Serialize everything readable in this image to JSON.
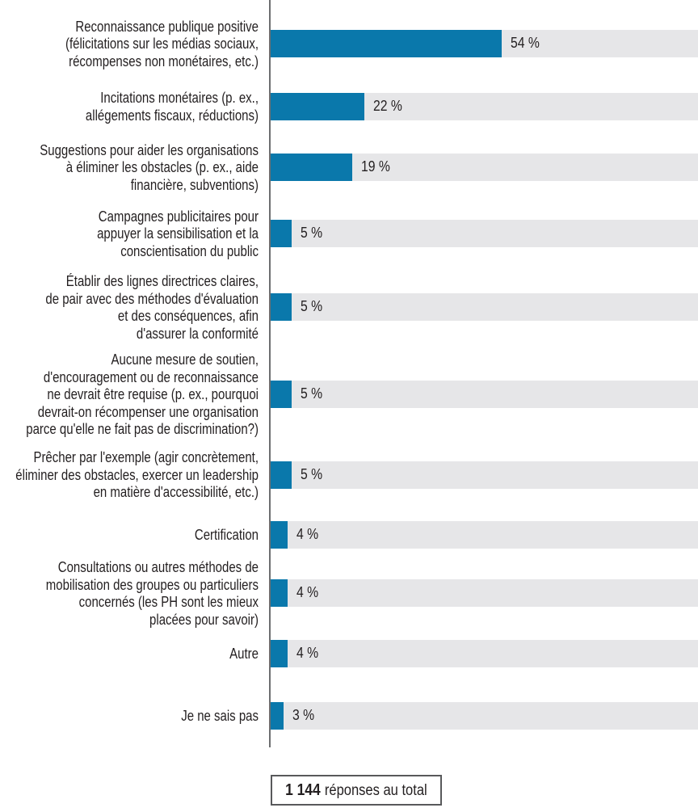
{
  "chart_data": {
    "type": "bar",
    "orientation": "horizontal",
    "title": "",
    "xlabel": "",
    "ylabel": "",
    "xlim": [
      0,
      100
    ],
    "grid": false,
    "legend": false,
    "unit": "%",
    "categories": [
      "Reconnaissance publique positive (félicitations sur les médias sociaux, récompenses non monétaires, etc.)",
      "Incitations monétaires (p. ex., allégements fiscaux, réductions)",
      "Suggestions pour aider les organisations à éliminer les obstacles (p. ex., aide financière, subventions)",
      "Campagnes publicitaires pour appuyer la sensibilisation et la conscientisation du public",
      "Établir des lignes directrices claires, de pair avec des méthodes d'évaluation et des conséquences, afin d'assurer la conformité",
      "Aucune mesure de soutien, d'encouragement ou de reconnaissance ne devrait être requise (p. ex., pourquoi devrait-on récompenser une organisation parce qu'elle ne fait pas de discrimination?)",
      "Prêcher par l'exemple (agir concrètement, éliminer des obstacles, exercer un leadership en matière d'accessibilité, etc.)",
      "Certification",
      "Consultations ou autres méthodes de mobilisation des groupes ou particuliers concernés (les PH sont les mieux placées pour savoir)",
      "Autre",
      "Je ne sais pas"
    ],
    "category_display_lines": [
      [
        "Reconnaissance publique positive",
        "(félicitations sur les médias sociaux,",
        "récompenses non monétaires, etc.)"
      ],
      [
        "Incitations monétaires (p. ex.,",
        "allégements fiscaux, réductions)"
      ],
      [
        "Suggestions pour aider les organisations",
        "à éliminer les obstacles (p. ex., aide",
        "financière, subventions)"
      ],
      [
        "Campagnes publicitaires pour",
        "appuyer la sensibilisation et la",
        "conscientisation du public"
      ],
      [
        "Établir des lignes directrices claires,",
        "de pair avec des méthodes d'évaluation",
        "et des conséquences, afin",
        "d'assurer la conformité"
      ],
      [
        "Aucune mesure de soutien,",
        "d'encouragement ou de reconnaissance",
        "ne devrait être requise (p. ex., pourquoi",
        "devrait-on récompenser une organisation",
        "parce qu'elle ne fait pas de discrimination?)"
      ],
      [
        "Prêcher par l'exemple (agir concrètement,",
        "éliminer des obstacles, exercer un leadership",
        "en matière d'accessibilité, etc.)"
      ],
      [
        "Certification"
      ],
      [
        "Consultations ou autres méthodes de",
        "mobilisation des groupes ou particuliers",
        "concernés (les PH sont les mieux",
        "placées pour savoir)"
      ],
      [
        "Autre"
      ],
      [
        "Je ne sais pas"
      ]
    ],
    "values": [
      54,
      22,
      19,
      5,
      5,
      5,
      5,
      4,
      4,
      4,
      3
    ],
    "value_labels": [
      "54 %",
      "22 %",
      "19 %",
      "5 %",
      "5 %",
      "5 %",
      "5 %",
      "4 %",
      "4 %",
      "4 %",
      "3 %"
    ],
    "total_note": {
      "value": "1 144",
      "text": "réponses au total"
    },
    "colors": {
      "bar": "#0a78ab",
      "track": "#e6e6e8",
      "axis": "#6d6e70",
      "text": "#231f20",
      "box_border": "#58595b"
    }
  }
}
